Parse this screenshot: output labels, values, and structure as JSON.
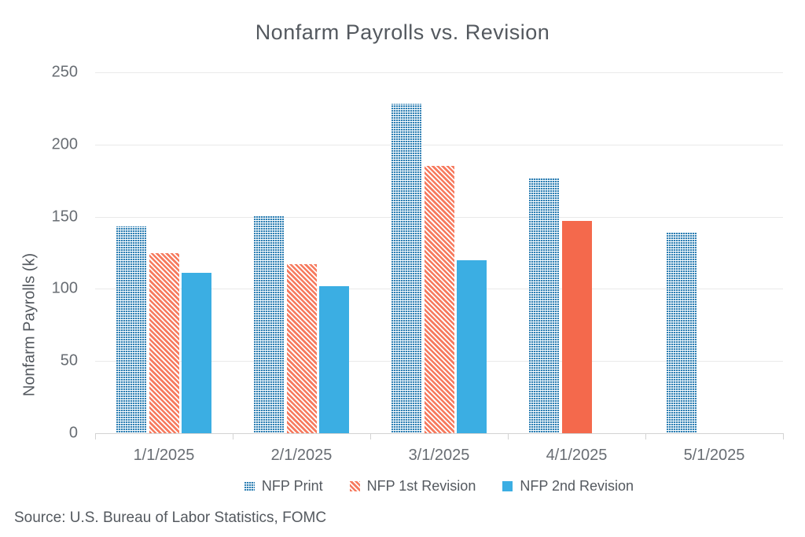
{
  "title": "Nonfarm Payrolls vs. Revision",
  "source_note": "Source: U.S. Bureau of Labor Statistics, FOMC",
  "colors": {
    "print_dot_blue": "#2e7fb3",
    "print_dot_tint": "#cde2ee",
    "revision1_hatch_coral": "#f67a5e",
    "revision1_solid_red": "#f4694c",
    "revision2_solid_blue": "#3baee3",
    "gridline": "#e9e9e9",
    "axis": "#d3d3d3",
    "title_text": "#54595f",
    "tick_text": "#686d73"
  },
  "chart_data": {
    "type": "bar",
    "title": "Nonfarm Payrolls vs. Revision",
    "xlabel": "",
    "ylabel": "Nonfarm Payrolls (k)",
    "ylim": [
      0,
      250
    ],
    "yticks": [
      0,
      50,
      100,
      150,
      200,
      250
    ],
    "grid": true,
    "legend_position": "bottom",
    "categories": [
      "1/1/2025",
      "2/1/2025",
      "3/1/2025",
      "4/1/2025",
      "5/1/2025"
    ],
    "series": [
      {
        "name": "NFP Print",
        "pattern": "dots",
        "color": "#2e7fb3",
        "values": [
          143,
          151,
          228,
          177,
          139
        ]
      },
      {
        "name": "NFP 1st Revision",
        "pattern": "hatch",
        "color": "#f4694c",
        "values": [
          125,
          117,
          185,
          147,
          null
        ],
        "point_styles": [
          "hatch",
          "hatch",
          "hatch",
          "solid",
          null
        ]
      },
      {
        "name": "NFP 2nd Revision",
        "pattern": "solid",
        "color": "#3baee3",
        "values": [
          111,
          102,
          120,
          null,
          null
        ]
      }
    ]
  }
}
